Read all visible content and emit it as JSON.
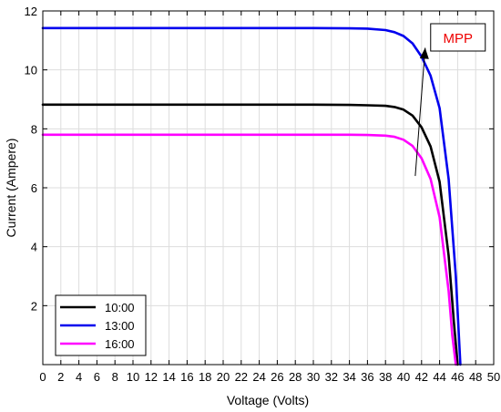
{
  "chart_data": {
    "type": "line",
    "title": "",
    "xlabel": "Voltage (Volts)",
    "ylabel": "Current (Ampere)",
    "xlim": [
      0,
      50
    ],
    "ylim": [
      0,
      12
    ],
    "xticks": [
      0,
      2,
      4,
      6,
      8,
      10,
      12,
      14,
      16,
      18,
      20,
      22,
      24,
      26,
      28,
      30,
      32,
      34,
      36,
      38,
      40,
      42,
      44,
      46,
      48,
      50
    ],
    "yticks": [
      2,
      4,
      6,
      8,
      10,
      12
    ],
    "grid": true,
    "legend_position": "bottom-left",
    "series": [
      {
        "name": "10:00",
        "color": "#000000",
        "x": [
          0,
          10,
          20,
          30,
          34,
          36,
          38,
          39,
          40,
          41,
          42,
          43,
          44,
          45,
          45.6,
          46
        ],
        "y": [
          8.82,
          8.82,
          8.82,
          8.82,
          8.81,
          8.8,
          8.78,
          8.74,
          8.65,
          8.45,
          8.05,
          7.4,
          6.2,
          3.7,
          1.4,
          0
        ]
      },
      {
        "name": "13:00",
        "color": "#0000ee",
        "x": [
          0,
          10,
          20,
          30,
          34,
          36,
          38,
          39,
          40,
          41,
          42,
          43,
          44,
          45,
          45.8,
          46.3
        ],
        "y": [
          11.42,
          11.42,
          11.42,
          11.42,
          11.41,
          11.4,
          11.35,
          11.28,
          11.15,
          10.9,
          10.45,
          9.8,
          8.7,
          6.3,
          3.0,
          0
        ]
      },
      {
        "name": "16:00",
        "color": "#ff00ff",
        "x": [
          0,
          10,
          20,
          30,
          34,
          36,
          38,
          39,
          40,
          41,
          42,
          43,
          44,
          45,
          45.4,
          45.8
        ],
        "y": [
          7.8,
          7.8,
          7.8,
          7.8,
          7.8,
          7.79,
          7.77,
          7.73,
          7.63,
          7.42,
          7.0,
          6.3,
          5.0,
          2.5,
          1.0,
          0
        ]
      }
    ],
    "annotations": [
      {
        "text": "MPP",
        "color": "#ee0000",
        "arrow_from": [
          41.3,
          6.4
        ],
        "arrow_to": [
          42.4,
          10.75
        ]
      }
    ]
  }
}
